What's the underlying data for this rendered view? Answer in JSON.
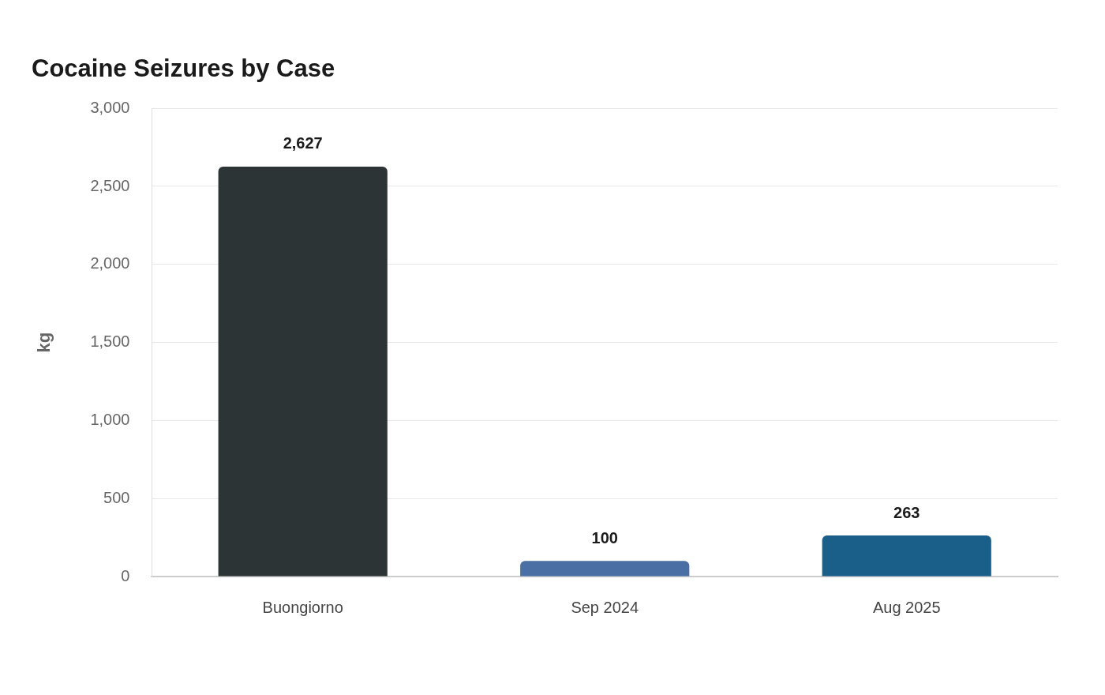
{
  "chart_data": {
    "type": "bar",
    "title": "Cocaine Seizures by Case",
    "ylabel": "kg",
    "categories": [
      "Buongiorno",
      "Sep 2024",
      "Aug 2025"
    ],
    "values": [
      2627,
      100,
      263
    ],
    "colors": [
      "#2d3436",
      "#4a6fa5",
      "#1a5f8a"
    ],
    "value_labels": [
      "2,627",
      "100",
      "263"
    ],
    "ylim": [
      0,
      3000
    ],
    "yticks": [
      0,
      500,
      {
        "value": 1000,
        "label": "1,000"
      },
      {
        "value": 1500,
        "label": "1,500"
      },
      {
        "value": 2000,
        "label": "2,000"
      },
      {
        "value": 2500,
        "label": "2,500"
      },
      {
        "value": 3000,
        "label": "3,000"
      }
    ],
    "grid": "y",
    "legend": false
  }
}
